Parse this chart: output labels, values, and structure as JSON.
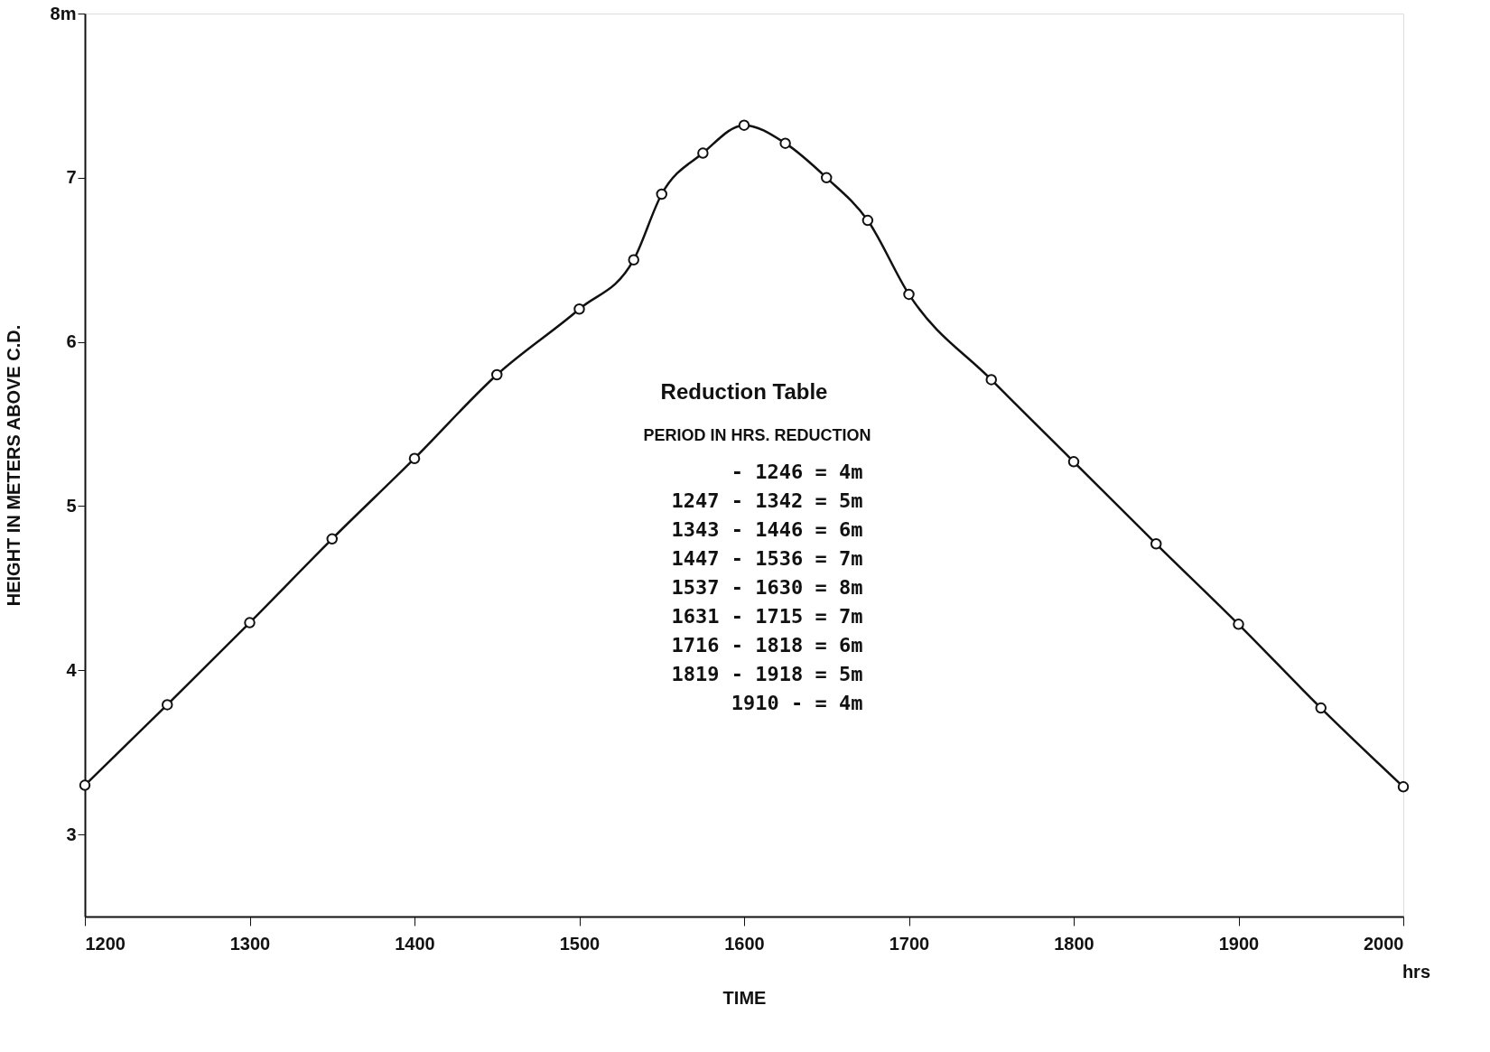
{
  "chart_data": {
    "type": "line",
    "xlabel": "TIME",
    "ylabel": "HEIGHT IN METERS ABOVE C.D.",
    "x": [
      1200,
      1250,
      1300,
      1350,
      1400,
      1450,
      1500,
      1533,
      1550,
      1575,
      1600,
      1625,
      1650,
      1675,
      1700,
      1750,
      1800,
      1850,
      1900,
      1950,
      2000
    ],
    "series": [
      {
        "color": "#111111",
        "values": [
          3.3,
          3.79,
          4.29,
          4.8,
          5.29,
          5.8,
          6.2,
          6.5,
          6.9,
          7.15,
          7.32,
          7.21,
          7.0,
          6.74,
          6.29,
          5.77,
          5.27,
          4.77,
          4.28,
          3.77,
          3.29
        ]
      }
    ],
    "xlim": [
      1200,
      2000
    ],
    "xticks": [
      1200,
      1300,
      1400,
      1500,
      1600,
      1700,
      1800,
      1900,
      2000
    ],
    "ylim": [
      2.5,
      8
    ],
    "yticks": [
      3,
      4,
      5,
      6,
      7,
      {
        "value": 8,
        "label": "8m"
      }
    ],
    "grid": false,
    "marker": "circle",
    "line_style": "solid",
    "annotations": [
      "hrs",
      "Reduction Table",
      "PERIOD IN HRS.   REDUCTION",
      "- 1246 = 4m",
      "1247 - 1342 = 5m",
      "1343 - 1446 = 6m",
      "1447 - 1536 = 7m",
      "1537 - 1630 = 8m",
      "1631 - 1715 = 7m",
      "1716 - 1818 = 6m",
      "1819 - 1918 = 5m",
      "1910 -        = 4m"
    ]
  }
}
